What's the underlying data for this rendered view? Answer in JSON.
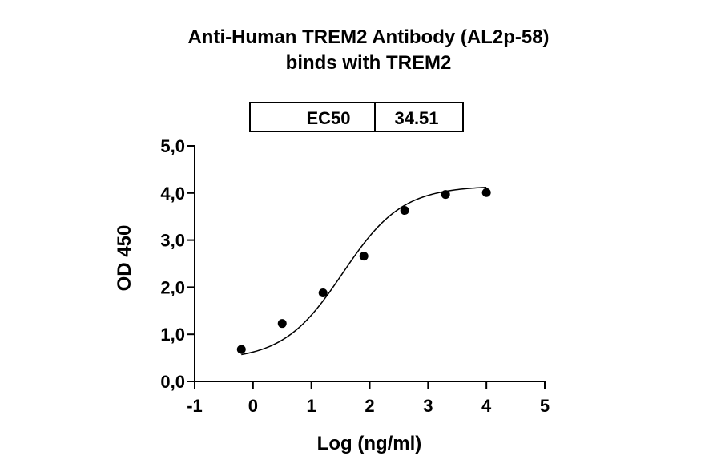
{
  "chart_data": {
    "type": "scatter",
    "title_line1": "Anti-Human TREM2 Antibody (AL2p-58)",
    "title_line2": "binds with TREM2",
    "xlabel": "Log (ng/ml)",
    "ylabel": "OD 450",
    "xlim": [
      -1,
      5
    ],
    "ylim": [
      0,
      5
    ],
    "x_ticks": [
      -1,
      0,
      1,
      2,
      3,
      4,
      5
    ],
    "x_tick_labels": [
      "-1",
      "0",
      "1",
      "2",
      "3",
      "4",
      "5"
    ],
    "y_ticks": [
      0,
      1,
      2,
      3,
      4,
      5
    ],
    "y_tick_labels": [
      "0,0",
      "1,0",
      "2,0",
      "3,0",
      "4,0",
      "5,0"
    ],
    "points": [
      {
        "x": -0.2,
        "y": 0.68
      },
      {
        "x": 0.5,
        "y": 1.23
      },
      {
        "x": 1.2,
        "y": 1.88
      },
      {
        "x": 1.9,
        "y": 2.66
      },
      {
        "x": 2.6,
        "y": 3.63
      },
      {
        "x": 3.3,
        "y": 3.97
      },
      {
        "x": 4.0,
        "y": 4.01
      }
    ],
    "fit_curve": {
      "model": "4PL",
      "bottom": 0.45,
      "top": 4.15,
      "log_ec50": 1.538,
      "hill": 0.85
    },
    "ec50_table": {
      "label": "EC50",
      "value": "34.51"
    },
    "colors": {
      "points": "#000000",
      "curve": "#000000",
      "axes": "#000000"
    }
  }
}
